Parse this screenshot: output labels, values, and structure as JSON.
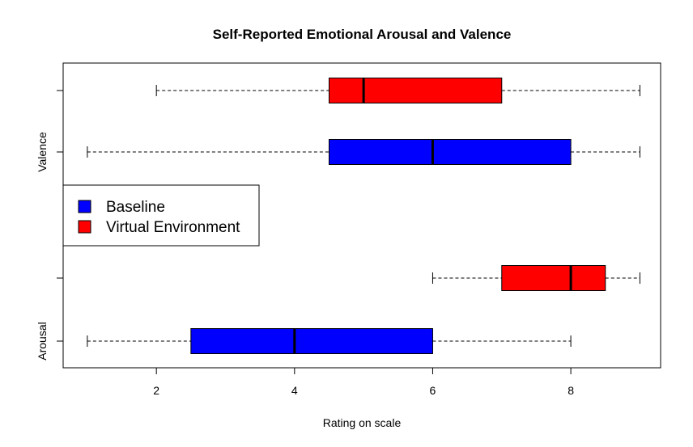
{
  "chart_data": {
    "type": "boxplot",
    "orientation": "horizontal",
    "title": "Self-Reported Emotional Arousal and Valence",
    "xlabel": "Rating on scale",
    "ylabel": "",
    "xlim": [
      0.65,
      9.3
    ],
    "x_ticks": [
      2,
      4,
      6,
      8
    ],
    "groups": [
      "Arousal",
      "Valence"
    ],
    "grid": false,
    "legend_position": "left-middle",
    "series": [
      {
        "name": "Baseline",
        "color": "#0000FF",
        "boxes": [
          {
            "group": "Arousal",
            "min": 1,
            "q1": 2.5,
            "median": 4,
            "q3": 6,
            "max": 8
          },
          {
            "group": "Valence",
            "min": 1,
            "q1": 4.5,
            "median": 6,
            "q3": 8,
            "max": 9
          }
        ]
      },
      {
        "name": "Virtual Environment",
        "color": "#FF0000",
        "boxes": [
          {
            "group": "Arousal",
            "min": 6,
            "q1": 7,
            "median": 8,
            "q3": 8.5,
            "max": 9
          },
          {
            "group": "Valence",
            "min": 2,
            "q1": 4.5,
            "median": 5,
            "q3": 7,
            "max": 9
          }
        ]
      }
    ]
  }
}
